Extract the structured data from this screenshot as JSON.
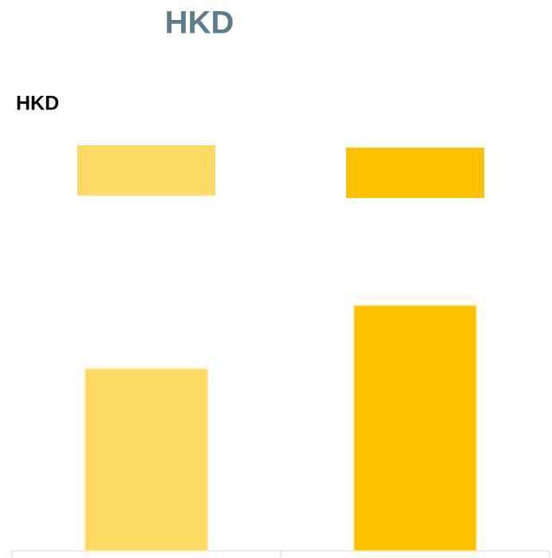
{
  "chart_data": {
    "type": "bar",
    "title": "HKD",
    "ylabel": "HKD",
    "categories": [
      null,
      null
    ],
    "values": [
      43,
      58
    ],
    "colors": [
      "#ffd966",
      "#ffc000"
    ],
    "ylim": [
      0,
      100
    ]
  }
}
